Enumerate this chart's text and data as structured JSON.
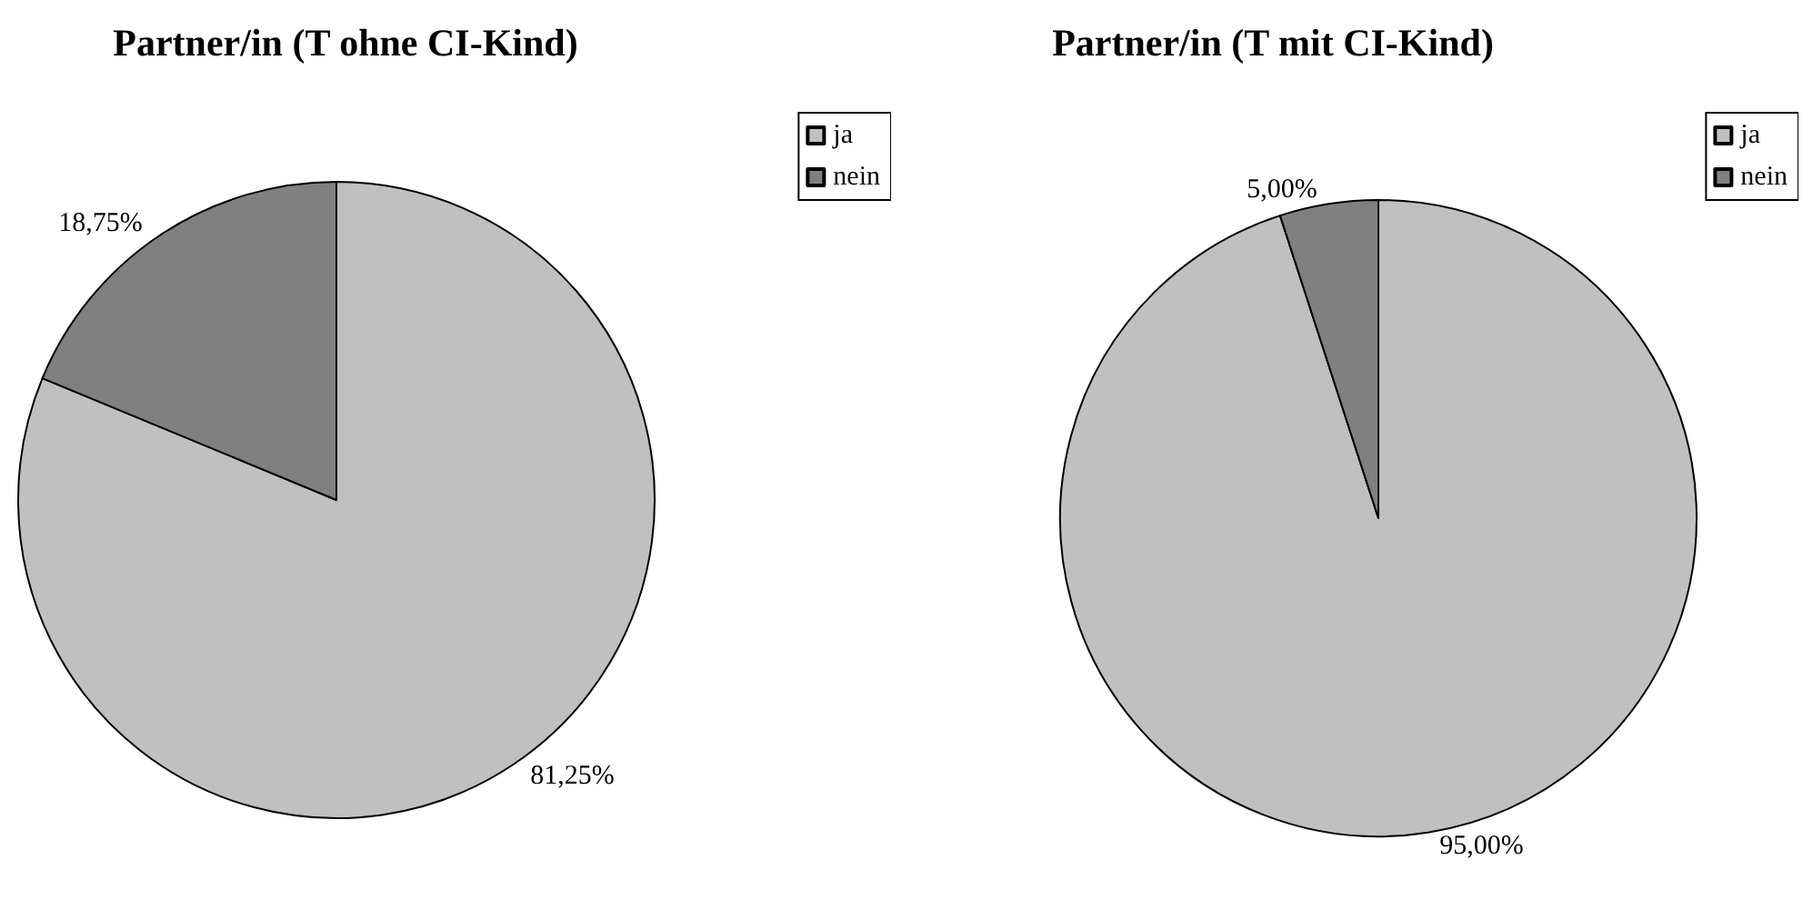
{
  "chart_data": [
    {
      "type": "pie",
      "title": "Partner/in (T ohne CI-Kind)",
      "categories": [
        "ja",
        "nein"
      ],
      "values": [
        81.25,
        18.75
      ],
      "colors": [
        "#c0c0c0",
        "#808080"
      ],
      "value_labels": [
        "81,25%",
        "18,75%"
      ],
      "legend": "top right"
    },
    {
      "type": "pie",
      "title": "Partner/in (T mit CI-Kind)",
      "categories": [
        "ja",
        "nein"
      ],
      "values": [
        95,
        5
      ],
      "colors": [
        "#c0c0c0",
        "#808080"
      ],
      "value_labels": [
        "95,00%",
        "5,00%"
      ],
      "legend": "top right"
    }
  ]
}
